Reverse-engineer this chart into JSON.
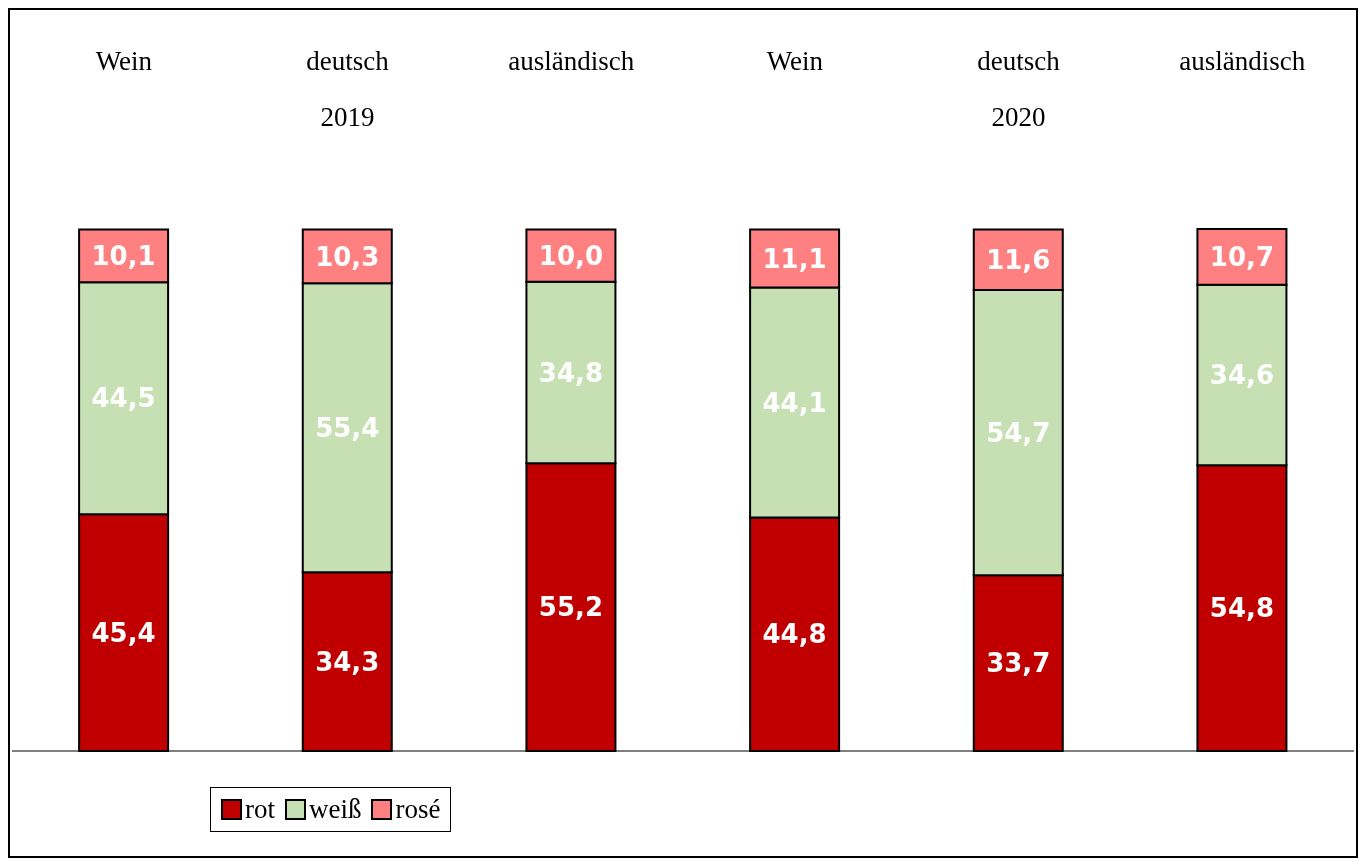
{
  "chart_data": {
    "type": "bar",
    "stacked": true,
    "categories": [
      "Wein",
      "deutsch",
      "ausländisch",
      "Wein",
      "deutsch",
      "ausländisch"
    ],
    "series": [
      {
        "name": "rot",
        "color": "#c00000",
        "values": [
          45.4,
          34.3,
          55.2,
          44.8,
          33.7,
          54.8
        ],
        "value_labels": [
          "45,4",
          "34,3",
          "55,2",
          "44,8",
          "33,7",
          "54,8"
        ]
      },
      {
        "name": "weiß",
        "color": "#c6e0b4",
        "values": [
          44.5,
          55.4,
          34.8,
          44.1,
          54.7,
          34.6
        ],
        "value_labels": [
          "44,5",
          "55,4",
          "34,8",
          "44,1",
          "54,7",
          "34,6"
        ]
      },
      {
        "name": "rosé",
        "color": "#ff8080",
        "values": [
          10.1,
          10.3,
          10.0,
          11.1,
          11.6,
          10.7
        ],
        "value_labels": [
          "10,1",
          "10,3",
          "10,0",
          "11,1",
          "11,6",
          "10,7"
        ]
      }
    ],
    "annotations": [
      "2019",
      "2020"
    ],
    "legend": "bottom left"
  }
}
